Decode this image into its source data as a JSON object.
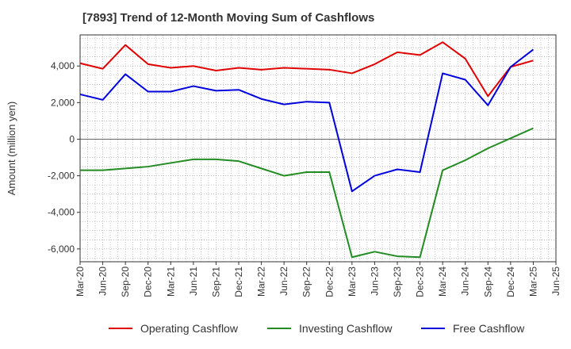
{
  "chart_data": {
    "type": "line",
    "title": "[7893]  Trend of 12-Month Moving Sum of Cashflows",
    "xlabel": "",
    "ylabel": "Amount (million yen)",
    "ylim": [
      -6700,
      5700
    ],
    "yticks": [
      4000,
      2000,
      0,
      -2000,
      -4000,
      -6000
    ],
    "ytick_labels": [
      "4,000",
      "2,000",
      "0",
      "-2,000",
      "-4,000",
      "-6,000"
    ],
    "categories": [
      "Mar-20",
      "Jun-20",
      "Sep-20",
      "Dec-20",
      "Mar-21",
      "Jun-21",
      "Sep-21",
      "Dec-21",
      "Mar-22",
      "Jun-22",
      "Sep-22",
      "Dec-22",
      "Mar-23",
      "Jun-23",
      "Sep-23",
      "Dec-23",
      "Mar-24",
      "Jun-24",
      "Sep-24",
      "Dec-24",
      "Mar-25",
      "Jun-25"
    ],
    "series": [
      {
        "name": "Operating Cashflow",
        "color": "#e00000",
        "values": [
          4150,
          3850,
          5150,
          4100,
          3900,
          4000,
          3750,
          3900,
          3800,
          3900,
          3850,
          3800,
          3600,
          4100,
          4750,
          4600,
          5300,
          4400,
          2350,
          3950,
          4300,
          null
        ]
      },
      {
        "name": "Investing Cashflow",
        "color": "#228b22",
        "values": [
          -1700,
          -1700,
          -1600,
          -1500,
          -1300,
          -1100,
          -1100,
          -1200,
          -1600,
          -2000,
          -1800,
          -1800,
          -6450,
          -6150,
          -6400,
          -6450,
          -1700,
          -1150,
          -500,
          50,
          600,
          null
        ]
      },
      {
        "name": "Free Cashflow",
        "color": "#0000dd",
        "values": [
          2450,
          2150,
          3550,
          2600,
          2600,
          2900,
          2650,
          2700,
          2200,
          1900,
          2050,
          2000,
          -2850,
          -2000,
          -1650,
          -1800,
          3600,
          3250,
          1850,
          3950,
          4900,
          null
        ]
      }
    ],
    "grid": true,
    "legend_position": "bottom"
  }
}
